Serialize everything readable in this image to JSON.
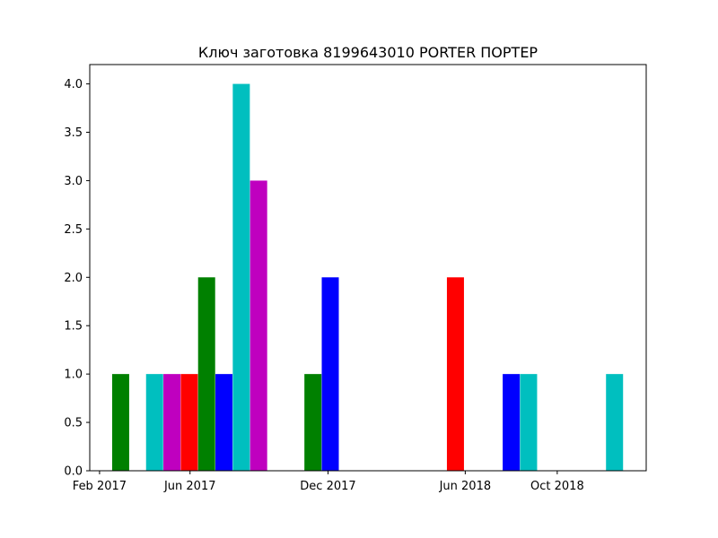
{
  "chart_data": {
    "type": "bar",
    "title": "Ключ заготовка 8199643010 PORTER ПОРТЕР",
    "xlabel": "",
    "ylabel": "",
    "ylim": [
      0.0,
      4.2
    ],
    "xlim": [
      "2017-01-19",
      "2019-01-27"
    ],
    "x_ticks": [
      {
        "date": "2017-02-01",
        "label": "Feb 2017"
      },
      {
        "date": "2017-06-01",
        "label": "Jun 2017"
      },
      {
        "date": "2017-12-01",
        "label": "Dec 2017"
      },
      {
        "date": "2018-06-01",
        "label": "Jun 2018"
      },
      {
        "date": "2018-10-01",
        "label": "Oct 2018"
      }
    ],
    "y_ticks": [
      0.0,
      0.5,
      1.0,
      1.5,
      2.0,
      2.5,
      3.0,
      3.5,
      4.0
    ],
    "bars": [
      {
        "date": "2017-03-01",
        "value": 1,
        "color": "#008000"
      },
      {
        "date": "2017-04-15",
        "value": 1,
        "color": "#00bfbf"
      },
      {
        "date": "2017-05-08",
        "value": 1,
        "color": "#bf00bf"
      },
      {
        "date": "2017-05-31",
        "value": 1,
        "color": "#ff0000"
      },
      {
        "date": "2017-06-23",
        "value": 2,
        "color": "#008000"
      },
      {
        "date": "2017-07-16",
        "value": 1,
        "color": "#0000ff"
      },
      {
        "date": "2017-08-08",
        "value": 4,
        "color": "#00bfbf"
      },
      {
        "date": "2017-08-31",
        "value": 3,
        "color": "#bf00bf"
      },
      {
        "date": "2017-11-11",
        "value": 1,
        "color": "#008000"
      },
      {
        "date": "2017-12-04",
        "value": 2,
        "color": "#0000ff"
      },
      {
        "date": "2018-05-19",
        "value": 2,
        "color": "#ff0000"
      },
      {
        "date": "2018-08-01",
        "value": 1,
        "color": "#0000ff"
      },
      {
        "date": "2018-08-24",
        "value": 1,
        "color": "#00bfbf"
      },
      {
        "date": "2018-12-16",
        "value": 1,
        "color": "#00bfbf"
      }
    ],
    "grid": false,
    "legend": "none"
  }
}
